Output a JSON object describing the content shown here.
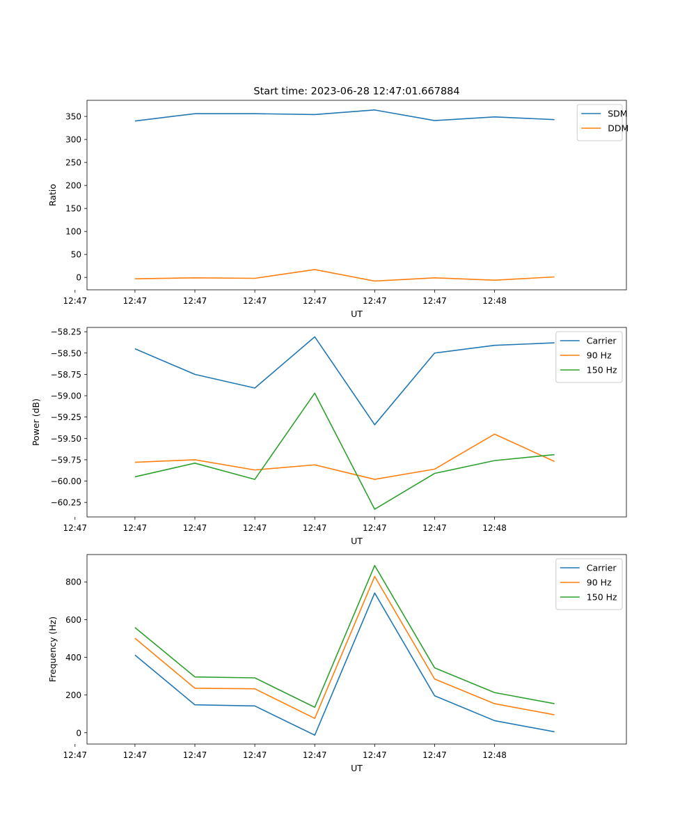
{
  "figure": {
    "title": "Start time: 2023-06-28 12:47:01.667884"
  },
  "chart_data": [
    {
      "type": "line",
      "title": "Start time: 2023-06-28 12:47:01.667884",
      "xlabel": "UT",
      "ylabel": "Ratio",
      "x_tick_labels": [
        "12:47",
        "12:47",
        "12:47",
        "12:47",
        "12:47",
        "12:47",
        "12:47",
        "12:48"
      ],
      "x": [
        1,
        2,
        3,
        4,
        5,
        6,
        7,
        8
      ],
      "xlim": [
        0.2,
        9.2
      ],
      "ylim": [
        -27,
        385
      ],
      "yticks": [
        0,
        50,
        100,
        150,
        200,
        250,
        300,
        350
      ],
      "grid": false,
      "legend_position": "top-right",
      "series": [
        {
          "name": "SDM",
          "color": "#1f77b4",
          "values": [
            340,
            356,
            356,
            354,
            364,
            341,
            349,
            343
          ]
        },
        {
          "name": "DDM",
          "color": "#ff7f0e",
          "values": [
            -3,
            -1,
            -2,
            17,
            -8,
            -1,
            -6,
            1
          ]
        }
      ]
    },
    {
      "type": "line",
      "xlabel": "UT",
      "ylabel": "Power (dB)",
      "x_tick_labels": [
        "12:47",
        "12:47",
        "12:47",
        "12:47",
        "12:47",
        "12:47",
        "12:47",
        "12:48"
      ],
      "x": [
        1,
        2,
        3,
        4,
        5,
        6,
        7,
        8
      ],
      "xlim": [
        0.2,
        9.2
      ],
      "ylim": [
        -60.42,
        -58.2
      ],
      "yticks": [
        -60.25,
        -60.0,
        -59.75,
        -59.5,
        -59.25,
        -59.0,
        -58.75,
        -58.5,
        -58.25
      ],
      "grid": false,
      "legend_position": "top-right",
      "series": [
        {
          "name": "Carrier",
          "color": "#1f77b4",
          "values": [
            -58.45,
            -58.75,
            -58.91,
            -58.31,
            -59.34,
            -58.5,
            -58.41,
            -58.38
          ]
        },
        {
          "name": "90 Hz",
          "color": "#ff7f0e",
          "values": [
            -59.78,
            -59.75,
            -59.87,
            -59.81,
            -59.98,
            -59.86,
            -59.45,
            -59.77
          ]
        },
        {
          "name": "150 Hz",
          "color": "#2ca02c",
          "values": [
            -59.95,
            -59.79,
            -59.98,
            -58.97,
            -60.33,
            -59.91,
            -59.76,
            -59.69
          ]
        }
      ]
    },
    {
      "type": "line",
      "xlabel": "UT",
      "ylabel": "Frequency (Hz)",
      "x_tick_labels": [
        "12:47",
        "12:47",
        "12:47",
        "12:47",
        "12:47",
        "12:47",
        "12:47",
        "12:48"
      ],
      "x": [
        1,
        2,
        3,
        4,
        5,
        6,
        7,
        8
      ],
      "xlim": [
        0.2,
        9.2
      ],
      "ylim": [
        -60,
        945
      ],
      "yticks": [
        0,
        200,
        400,
        600,
        800
      ],
      "grid": false,
      "legend_position": "top-right",
      "series": [
        {
          "name": "Carrier",
          "color": "#1f77b4",
          "values": [
            412,
            148,
            142,
            -13,
            741,
            196,
            64,
            5
          ]
        },
        {
          "name": "90 Hz",
          "color": "#ff7f0e",
          "values": [
            501,
            236,
            233,
            76,
            829,
            285,
            154,
            95
          ]
        },
        {
          "name": "150 Hz",
          "color": "#2ca02c",
          "values": [
            558,
            296,
            291,
            135,
            887,
            344,
            213,
            154
          ]
        }
      ]
    }
  ]
}
